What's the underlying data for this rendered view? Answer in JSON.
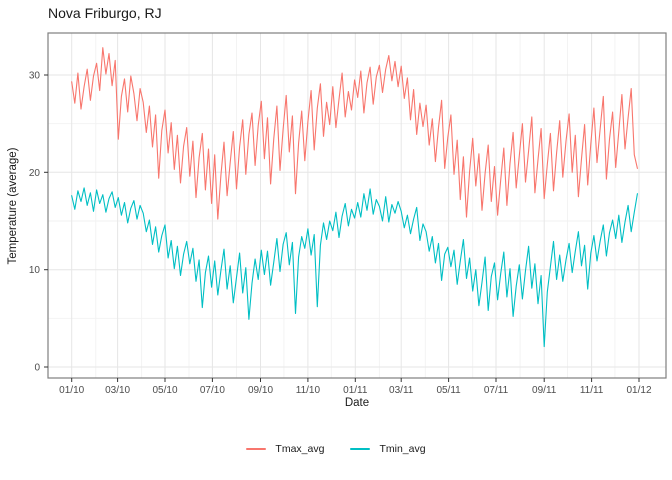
{
  "colors": {
    "grid_major": "#E6E6E6",
    "grid_minor": "#F2F2F2",
    "panel_border": "#7F7F7F",
    "tick": "#333333",
    "tick_label": "#4D4D4D",
    "text": "#1A1A1A",
    "background": "#FFFFFF"
  },
  "chart_data": {
    "type": "line",
    "title": "Nova Friburgo, RJ",
    "xlabel": "Date",
    "ylabel": "Temperature (average)",
    "legend_position": "bottom",
    "grid": "major+minor",
    "x_tick_labels": [
      "01/10",
      "03/10",
      "05/10",
      "07/10",
      "09/10",
      "11/10",
      "01/11",
      "03/11",
      "05/11",
      "07/11",
      "09/11",
      "11/11",
      "01/12"
    ],
    "x_ticks_days": [
      0,
      59,
      120,
      181,
      243,
      304,
      365,
      424,
      485,
      546,
      608,
      669,
      730
    ],
    "x_minor_days": [
      31,
      90,
      151,
      212,
      273,
      334,
      396,
      455,
      516,
      577,
      638,
      699
    ],
    "y_ticks": [
      0,
      10,
      20,
      30
    ],
    "y_minor": [
      5,
      15,
      25
    ],
    "ylim": [
      -1.2,
      34.3
    ],
    "x_days_total": 730,
    "step_days": 4,
    "series": [
      {
        "name": "Tmax_avg",
        "color": "#F8766D",
        "values": [
          29.3,
          27.1,
          30.2,
          26.5,
          28.8,
          30.6,
          27.4,
          29.9,
          31.2,
          28.4,
          32.8,
          30.1,
          32.2,
          28.9,
          31.5,
          23.4,
          27.8,
          29.6,
          26.2,
          29.9,
          28.1,
          25.3,
          28.6,
          27.2,
          24.1,
          26.8,
          22.6,
          25.9,
          19.4,
          24.3,
          26.4,
          22.0,
          25.1,
          20.3,
          23.8,
          18.9,
          22.7,
          24.6,
          19.6,
          23.2,
          17.4,
          21.5,
          24.0,
          18.2,
          22.4,
          16.8,
          21.8,
          15.2,
          19.7,
          23.1,
          17.6,
          21.0,
          24.2,
          18.3,
          22.6,
          25.4,
          19.8,
          23.9,
          26.1,
          20.7,
          24.8,
          27.3,
          21.4,
          25.6,
          18.8,
          23.5,
          26.8,
          20.2,
          24.4,
          27.9,
          22.1,
          25.8,
          17.8,
          23.0,
          26.3,
          21.2,
          25.2,
          28.4,
          22.3,
          26.6,
          29.1,
          23.7,
          27.2,
          24.9,
          28.8,
          24.6,
          27.5,
          30.2,
          25.7,
          28.3,
          26.4,
          29.5,
          27.7,
          30.4,
          26.1,
          29.2,
          30.8,
          27.0,
          29.8,
          31.0,
          28.2,
          30.6,
          32.0,
          29.4,
          31.4,
          28.8,
          30.9,
          27.6,
          29.7,
          25.4,
          28.5,
          23.9,
          27.1,
          24.7,
          26.9,
          22.8,
          25.5,
          21.1,
          24.6,
          27.4,
          20.4,
          23.6,
          25.9,
          19.8,
          23.3,
          17.2,
          21.6,
          15.4,
          20.1,
          23.5,
          18.6,
          21.9,
          16.1,
          19.9,
          22.8,
          17.0,
          20.6,
          15.6,
          19.2,
          22.5,
          16.6,
          20.9,
          24.1,
          18.4,
          21.7,
          25.0,
          19.0,
          22.2,
          25.7,
          17.9,
          21.3,
          24.5,
          17.3,
          20.8,
          24.0,
          18.1,
          22.0,
          25.3,
          19.5,
          23.2,
          26.0,
          20.0,
          23.8,
          17.5,
          21.4,
          24.9,
          18.7,
          22.9,
          26.6,
          21.0,
          24.4,
          27.8,
          19.3,
          23.4,
          26.2,
          20.5,
          24.2,
          28.0,
          22.4,
          25.6,
          28.6,
          21.8,
          20.4
        ]
      },
      {
        "name": "Tmin_avg",
        "color": "#00BFC4",
        "values": [
          17.6,
          16.2,
          18.1,
          17.0,
          18.4,
          16.6,
          17.9,
          16.0,
          18.2,
          16.8,
          17.7,
          15.9,
          17.3,
          18.0,
          16.4,
          17.4,
          15.6,
          16.9,
          14.8,
          16.3,
          17.1,
          15.2,
          16.6,
          15.8,
          13.9,
          15.1,
          12.6,
          14.4,
          11.8,
          13.5,
          14.6,
          11.2,
          13.0,
          10.1,
          12.4,
          9.4,
          11.6,
          12.9,
          10.6,
          12.2,
          8.8,
          11.0,
          6.1,
          9.7,
          11.4,
          8.2,
          10.9,
          7.4,
          9.9,
          12.1,
          8.0,
          10.4,
          6.6,
          9.2,
          11.7,
          7.6,
          10.2,
          4.9,
          8.6,
          11.1,
          9.0,
          12.0,
          9.5,
          11.9,
          8.4,
          10.8,
          13.2,
          9.8,
          12.6,
          13.8,
          10.5,
          12.8,
          5.5,
          11.3,
          13.4,
          12.2,
          14.2,
          11.5,
          13.6,
          6.2,
          12.5,
          14.8,
          13.1,
          15.0,
          14.0,
          15.9,
          13.3,
          15.5,
          16.8,
          14.5,
          16.2,
          15.3,
          16.9,
          15.4,
          17.8,
          16.1,
          18.3,
          15.7,
          17.2,
          16.5,
          15.0,
          17.5,
          14.9,
          16.7,
          15.8,
          17.0,
          16.0,
          14.3,
          15.6,
          13.7,
          15.2,
          16.4,
          13.0,
          14.7,
          13.9,
          11.9,
          13.4,
          10.7,
          12.7,
          8.9,
          11.6,
          12.3,
          10.3,
          12.0,
          8.5,
          10.9,
          13.1,
          9.1,
          11.2,
          7.8,
          10.0,
          6.3,
          8.7,
          11.3,
          5.8,
          9.3,
          10.7,
          6.9,
          9.6,
          11.8,
          7.2,
          10.1,
          5.2,
          8.3,
          10.5,
          7.0,
          9.9,
          12.4,
          8.1,
          10.6,
          6.5,
          9.4,
          2.1,
          7.7,
          10.3,
          12.9,
          9.0,
          11.5,
          8.8,
          11.0,
          12.7,
          9.7,
          11.9,
          13.9,
          10.4,
          12.5,
          8.0,
          11.7,
          13.5,
          10.9,
          12.9,
          14.6,
          11.4,
          13.8,
          15.1,
          13.2,
          15.6,
          12.8,
          14.9,
          16.6,
          13.9,
          15.9,
          17.8
        ]
      }
    ]
  }
}
